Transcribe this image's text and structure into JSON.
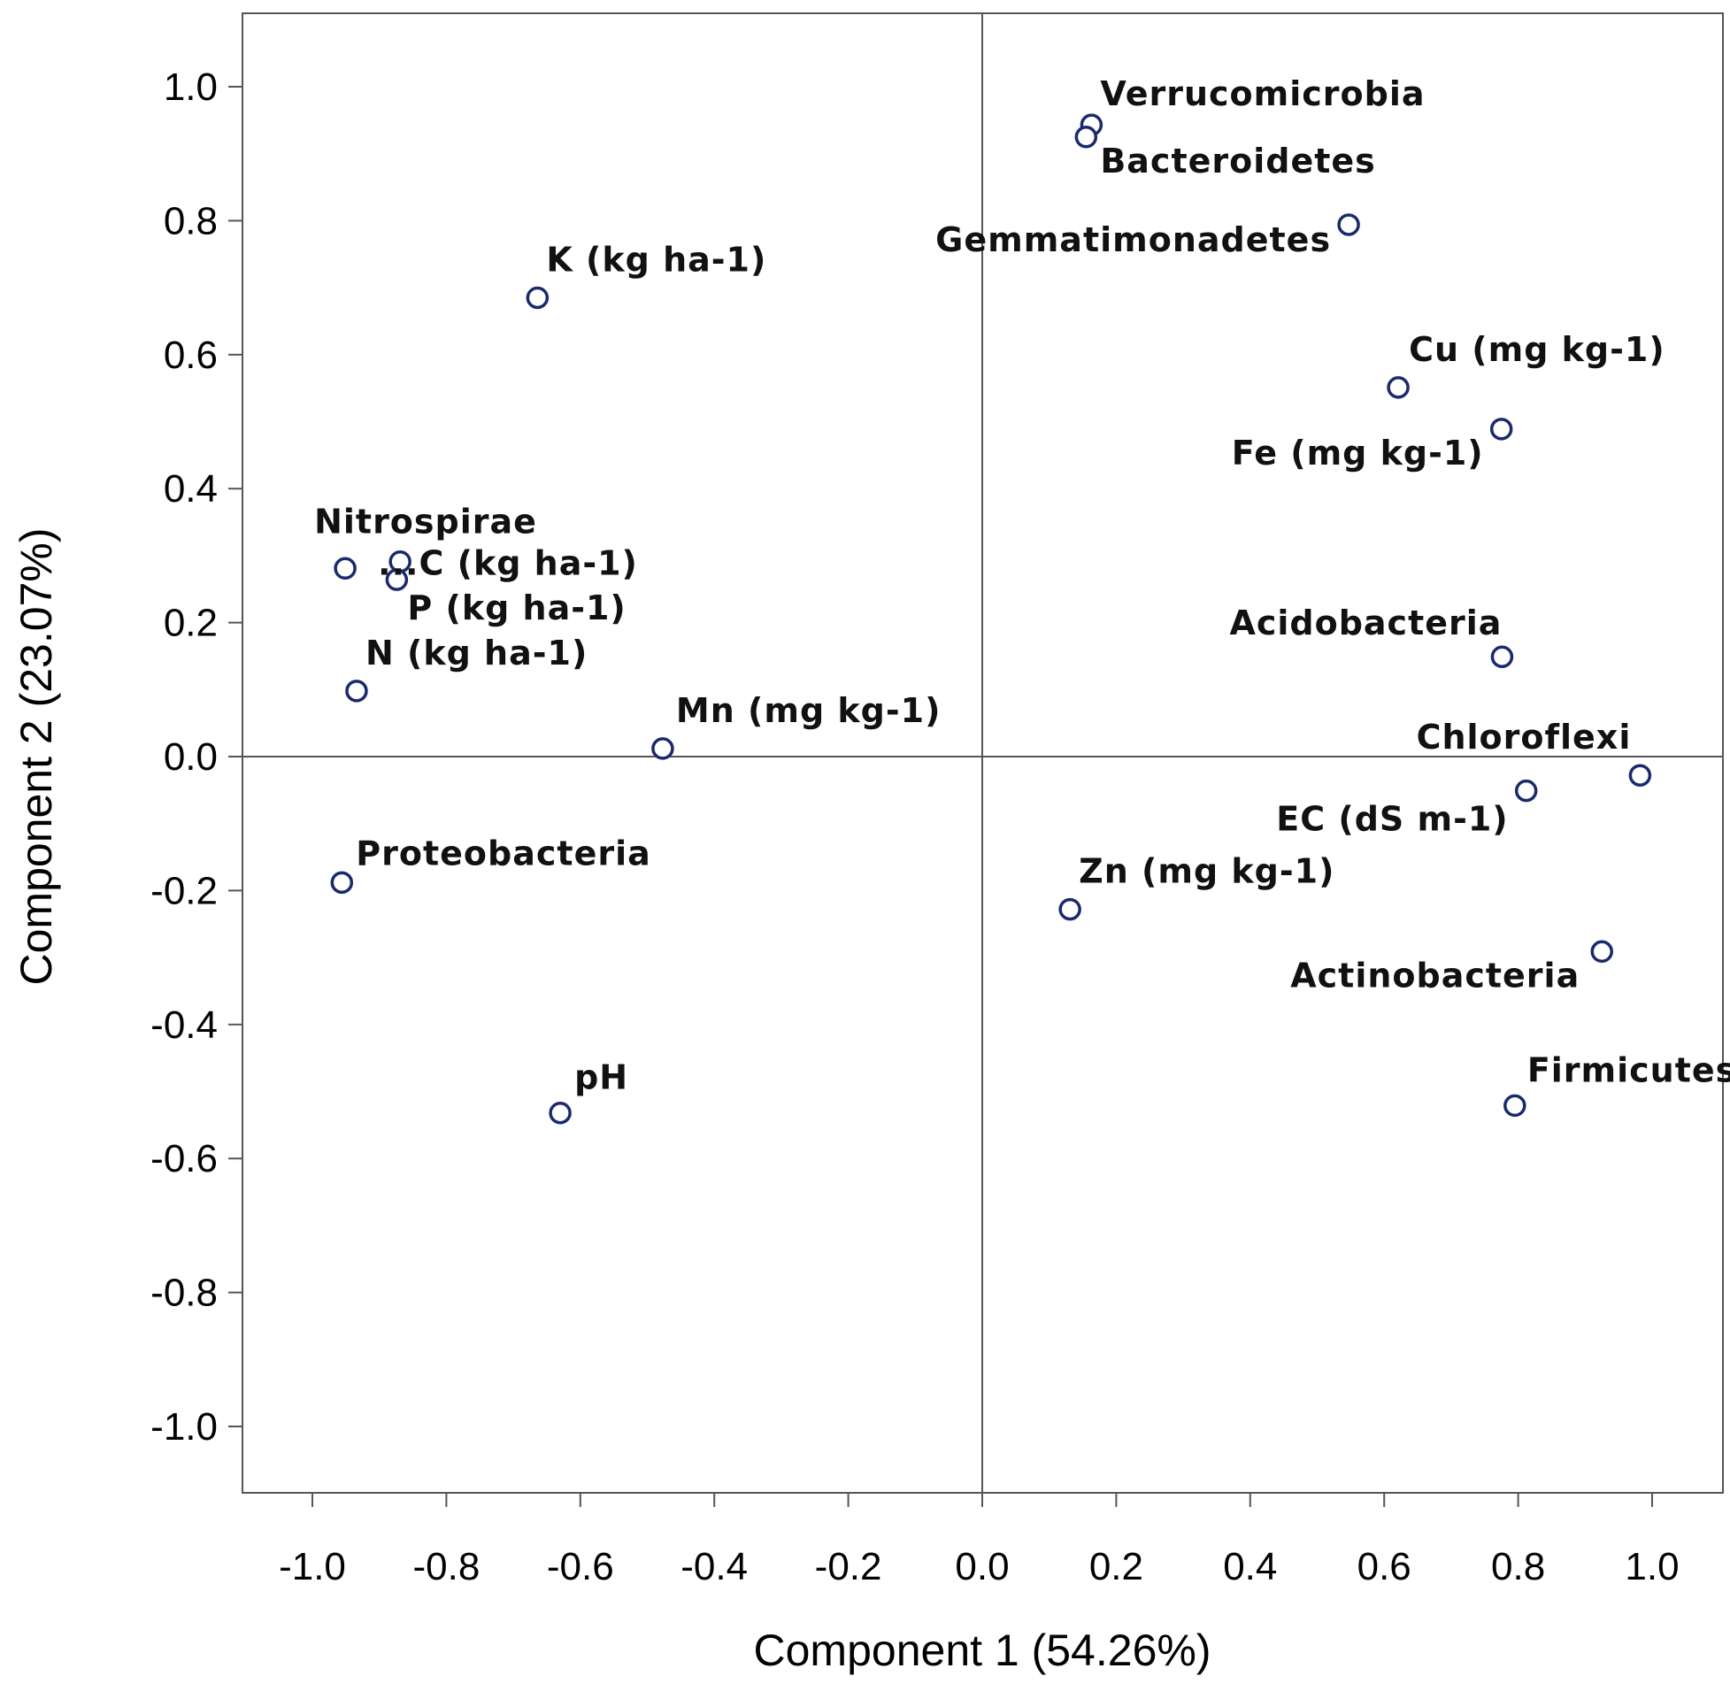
{
  "chart_data": {
    "type": "scatter",
    "xlabel": "Component 1 (54.26%)",
    "ylabel": "Component 2 (23.07%)",
    "xlim": [
      -1.1,
      1.1
    ],
    "ylim": [
      -1.1,
      1.1
    ],
    "xticks": [
      "-1.0",
      "-0.8",
      "-0.6",
      "-0.4",
      "-0.2",
      "0.0",
      "0.2",
      "0.4",
      "0.6",
      "0.8",
      "1.0"
    ],
    "yticks": [
      "1.0",
      "0.8",
      "0.6",
      "0.4",
      "0.2",
      "0.0",
      "-0.2",
      "-0.4",
      "-0.6",
      "-0.8",
      "-1.0"
    ],
    "reference_lines": {
      "x": 0,
      "y": 0
    },
    "marker_color": "#1a2a6c",
    "points": [
      {
        "label": "Verrucomicrobia",
        "x": 0.163,
        "y": 0.943
      },
      {
        "label": "Bacteroidetes",
        "x": 0.155,
        "y": 0.925
      },
      {
        "label": "Gemmatimonadetes",
        "x": 0.547,
        "y": 0.794
      },
      {
        "label": "K (kg ha-1)",
        "x": -0.664,
        "y": 0.685
      },
      {
        "label": "Cu (mg kg-1)",
        "x": 0.621,
        "y": 0.551
      },
      {
        "label": "Fe (mg kg-1)",
        "x": 0.775,
        "y": 0.489
      },
      {
        "label": "Nitrospirae",
        "x": -0.951,
        "y": 0.281
      },
      {
        "label": "...C (kg ha-1)",
        "x": -0.869,
        "y": 0.291
      },
      {
        "label": "P (kg ha-1)",
        "x": -0.874,
        "y": 0.264
      },
      {
        "label": "N (kg ha-1)",
        "x": -0.934,
        "y": 0.098
      },
      {
        "label": "Acidobacteria",
        "x": 0.776,
        "y": 0.149
      },
      {
        "label": "Mn (mg kg-1)",
        "x": -0.477,
        "y": 0.012
      },
      {
        "label": "Chloroflexi",
        "x": 0.982,
        "y": -0.028
      },
      {
        "label": "EC (dS m-1)",
        "x": 0.812,
        "y": -0.051
      },
      {
        "label": "Proteobacteria",
        "x": -0.956,
        "y": -0.188
      },
      {
        "label": "Zn (mg kg-1)",
        "x": 0.131,
        "y": -0.228
      },
      {
        "label": "Actinobacteria",
        "x": 0.925,
        "y": -0.291
      },
      {
        "label": "Firmicutes",
        "x": 0.795,
        "y": -0.521
      },
      {
        "label": "pH",
        "x": -0.63,
        "y": -0.532
      }
    ]
  }
}
